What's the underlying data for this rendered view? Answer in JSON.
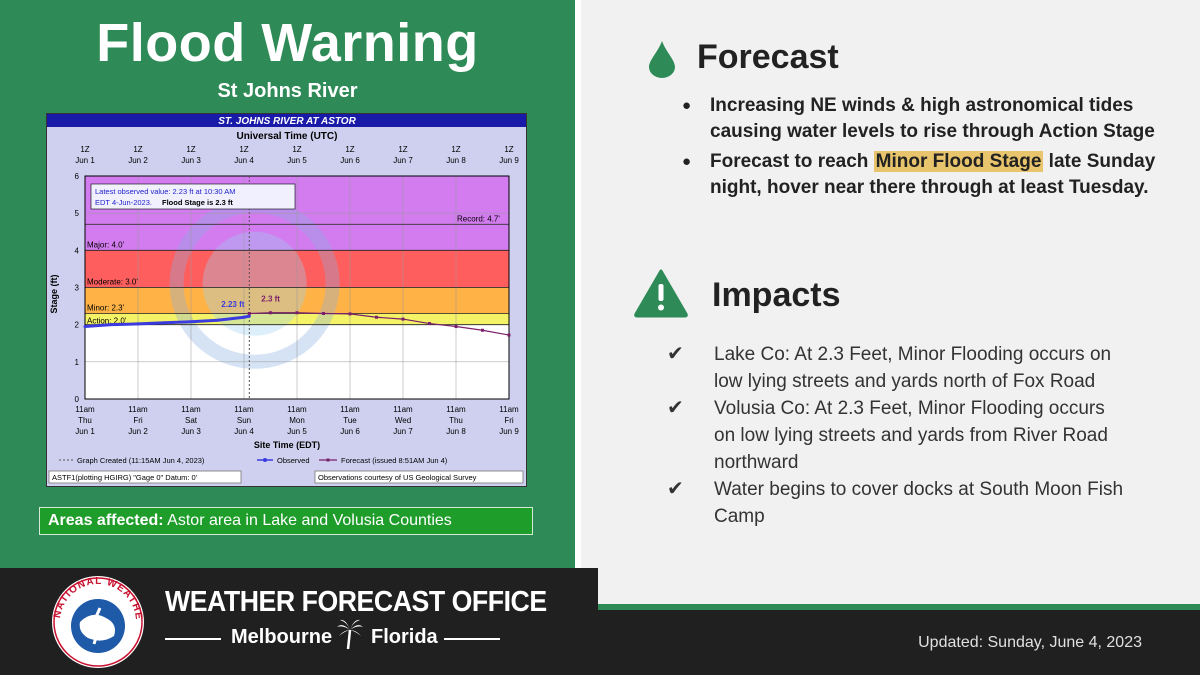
{
  "header": {
    "title": "Flood Warning",
    "subtitle": "St Johns River"
  },
  "hydrograph": {
    "title": "ST. JOHNS RIVER AT ASTOR",
    "top_axis_label": "Universal Time (UTC)",
    "bottom_axis_label": "Site Time (EDT)",
    "y_axis_label": "Stage (ft)",
    "utc_ticks": [
      {
        "t": "1Z",
        "d": "Jun 1"
      },
      {
        "t": "1Z",
        "d": "Jun 2"
      },
      {
        "t": "1Z",
        "d": "Jun 3"
      },
      {
        "t": "1Z",
        "d": "Jun 4"
      },
      {
        "t": "1Z",
        "d": "Jun 5"
      },
      {
        "t": "1Z",
        "d": "Jun 6"
      },
      {
        "t": "1Z",
        "d": "Jun 7"
      },
      {
        "t": "1Z",
        "d": "Jun 8"
      },
      {
        "t": "1Z",
        "d": "Jun 9"
      }
    ],
    "site_ticks": [
      {
        "t": "11am",
        "w": "Thu",
        "d": "Jun 1"
      },
      {
        "t": "11am",
        "w": "Fri",
        "d": "Jun 2"
      },
      {
        "t": "11am",
        "w": "Sat",
        "d": "Jun 3"
      },
      {
        "t": "11am",
        "w": "Sun",
        "d": "Jun 4"
      },
      {
        "t": "11am",
        "w": "Mon",
        "d": "Jun 5"
      },
      {
        "t": "11am",
        "w": "Tue",
        "d": "Jun 6"
      },
      {
        "t": "11am",
        "w": "Wed",
        "d": "Jun 7"
      },
      {
        "t": "11am",
        "w": "Thu",
        "d": "Jun 8"
      },
      {
        "t": "11am",
        "w": "Fri",
        "d": "Jun 9"
      }
    ],
    "y_ticks": [
      "0",
      "1",
      "2",
      "3",
      "4",
      "5",
      "6"
    ],
    "latest_line1": "Latest observed value: 2.23 ft at 10:30 AM",
    "latest_line2": "EDT 4-Jun-2023.",
    "latest_line3": "Flood Stage is 2.3 ft",
    "record_label": "Record: 4.7'",
    "major_label": "Major: 4.0'",
    "moderate_label": "Moderate: 3.0'",
    "minor_label": "Minor: 2.3'",
    "action_label": "Action: 2.0'",
    "obs_label": "2.23 ft",
    "fcst_label": "2.3 ft",
    "legend_created": "Graph Created (11:15AM Jun 4, 2023)",
    "legend_observed": "Observed",
    "legend_forecast": "Forecast (issued 8:51AM Jun 4)",
    "footer_left": "ASTF1(plotting HGIRG) \"Gage 0\" Datum: 0'",
    "footer_right": "Observations courtesy of US Geological Survey",
    "colors": {
      "major": "#d37cf0",
      "moderate": "#ff5e5e",
      "minor": "#ffb347",
      "action": "#f4f266",
      "frame": "#1a1aa8",
      "observed": "#3b3be0",
      "forecast": "#7a1f6a"
    },
    "stage_levels": {
      "record": 4.7,
      "major": 4.0,
      "moderate": 3.0,
      "minor": 2.3,
      "action": 2.0,
      "top": 6,
      "bottom": 0
    },
    "observed_series": [
      [
        0,
        1.95
      ],
      [
        0.5,
        2.0
      ],
      [
        1,
        2.02
      ],
      [
        1.5,
        2.05
      ],
      [
        2,
        2.08
      ],
      [
        2.5,
        2.12
      ],
      [
        3,
        2.2
      ],
      [
        3.1,
        2.23
      ]
    ],
    "forecast_series": [
      [
        3.1,
        2.3
      ],
      [
        3.5,
        2.32
      ],
      [
        4,
        2.32
      ],
      [
        4.5,
        2.3
      ],
      [
        5,
        2.29
      ],
      [
        5.5,
        2.2
      ],
      [
        6,
        2.15
      ],
      [
        6.5,
        2.03
      ],
      [
        7,
        1.95
      ],
      [
        7.5,
        1.85
      ],
      [
        8,
        1.72
      ]
    ]
  },
  "areas": {
    "label": "Areas affected:",
    "text": "Astor area in Lake and Volusia Counties"
  },
  "forecast": {
    "heading": "Forecast",
    "bullet1": "Increasing NE winds & high astronomical tides causing water levels to rise through Action Stage",
    "bullet2_pre": "Forecast to reach ",
    "bullet2_hl": "Minor Flood Stage",
    "bullet2_post": " late Sunday night, hover near there through at least Tuesday."
  },
  "impacts": {
    "heading": "Impacts",
    "items": [
      "Lake Co: At 2.3 Feet, Minor Flooding occurs on low lying streets and yards north of Fox Road",
      "Volusia Co: At 2.3 Feet, Minor Flooding occurs on low lying streets and yards from River Road northward",
      "Water begins to cover docks at South Moon Fish Camp"
    ]
  },
  "footer": {
    "office_title": "WEATHER FORECAST OFFICE",
    "city": "Melbourne",
    "state": "Florida",
    "updated": "Updated: Sunday, June 4, 2023",
    "logo_text": "NATIONAL WEATHER SERVICE"
  },
  "icons": {
    "forecast": "water-drop-icon",
    "impacts": "warning-triangle-icon",
    "check": "check-icon",
    "palm": "palm-tree-icon"
  },
  "theme": {
    "green": "#2e8b57",
    "bright_green": "#1f9d2b",
    "highlight": "#e8c46c",
    "dark": "#202020"
  }
}
